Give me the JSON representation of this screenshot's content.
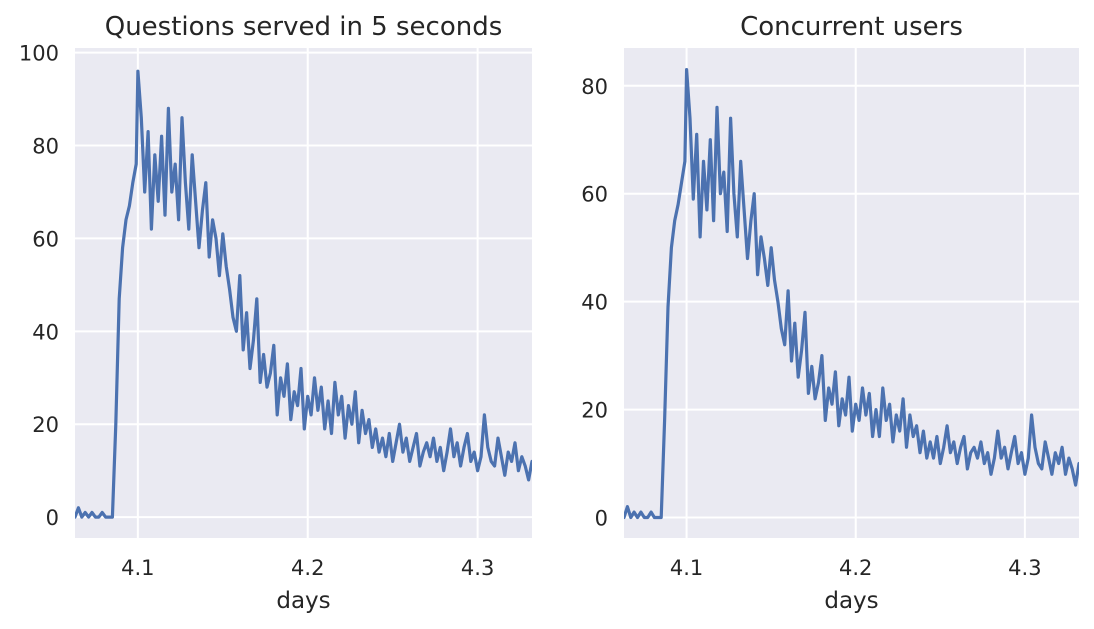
{
  "chart_data": [
    {
      "type": "line",
      "title": "Questions served in 5 seconds",
      "xlabel": "days",
      "ylabel": "",
      "xlim": [
        4.063,
        4.332
      ],
      "ylim": [
        -4.5,
        101
      ],
      "xticks": [
        4.1,
        4.2,
        4.3
      ],
      "xtick_labels": [
        "4.1",
        "4.2",
        "4.3"
      ],
      "yticks": [
        0,
        20,
        40,
        60,
        80,
        100
      ],
      "ytick_labels": [
        "0",
        "20",
        "40",
        "60",
        "80",
        "100"
      ],
      "grid": true,
      "series": [
        {
          "color": "#4c72b0",
          "x": [
            4.063,
            4.065,
            4.067,
            4.069,
            4.071,
            4.073,
            4.075,
            4.077,
            4.079,
            4.081,
            4.083,
            4.085,
            4.087,
            4.089,
            4.091,
            4.093,
            4.095,
            4.097,
            4.099,
            4.1,
            4.102,
            4.104,
            4.106,
            4.108,
            4.11,
            4.112,
            4.114,
            4.116,
            4.118,
            4.12,
            4.122,
            4.124,
            4.126,
            4.128,
            4.13,
            4.132,
            4.134,
            4.136,
            4.138,
            4.14,
            4.142,
            4.144,
            4.146,
            4.148,
            4.15,
            4.152,
            4.154,
            4.156,
            4.158,
            4.16,
            4.162,
            4.164,
            4.166,
            4.168,
            4.17,
            4.172,
            4.174,
            4.176,
            4.178,
            4.18,
            4.182,
            4.184,
            4.186,
            4.188,
            4.19,
            4.192,
            4.194,
            4.196,
            4.198,
            4.2,
            4.202,
            4.204,
            4.206,
            4.208,
            4.21,
            4.212,
            4.214,
            4.216,
            4.218,
            4.22,
            4.222,
            4.224,
            4.226,
            4.228,
            4.23,
            4.232,
            4.234,
            4.236,
            4.238,
            4.24,
            4.242,
            4.244,
            4.246,
            4.248,
            4.25,
            4.252,
            4.254,
            4.256,
            4.258,
            4.26,
            4.262,
            4.264,
            4.266,
            4.268,
            4.27,
            4.272,
            4.274,
            4.276,
            4.278,
            4.28,
            4.282,
            4.284,
            4.286,
            4.288,
            4.29,
            4.292,
            4.294,
            4.296,
            4.298,
            4.3,
            4.302,
            4.304,
            4.306,
            4.308,
            4.31,
            4.312,
            4.314,
            4.316,
            4.318,
            4.32,
            4.322,
            4.324,
            4.326,
            4.328,
            4.33,
            4.332
          ],
          "values": [
            0,
            2,
            0,
            1,
            0,
            1,
            0,
            0,
            1,
            0,
            0,
            0,
            20,
            47,
            58,
            64,
            67,
            72,
            76,
            96,
            86,
            70,
            83,
            62,
            78,
            68,
            82,
            65,
            88,
            70,
            76,
            64,
            86,
            72,
            62,
            78,
            68,
            58,
            66,
            72,
            56,
            64,
            60,
            52,
            61,
            54,
            49,
            43,
            40,
            52,
            36,
            44,
            32,
            38,
            47,
            29,
            35,
            28,
            31,
            37,
            22,
            30,
            26,
            33,
            21,
            27,
            24,
            32,
            19,
            26,
            22,
            30,
            23,
            28,
            19,
            25,
            18,
            29,
            22,
            26,
            17,
            24,
            20,
            27,
            16,
            23,
            18,
            21,
            15,
            19,
            14,
            17,
            13,
            18,
            12,
            16,
            20,
            14,
            17,
            12,
            15,
            18,
            11,
            14,
            16,
            13,
            17,
            12,
            15,
            10,
            14,
            19,
            13,
            16,
            11,
            15,
            18,
            12,
            14,
            10,
            13,
            22,
            15,
            12,
            11,
            17,
            13,
            9,
            14,
            12,
            16,
            10,
            13,
            11,
            8,
            12
          ]
        }
      ]
    },
    {
      "type": "line",
      "title": "Concurrent users",
      "xlabel": "days",
      "ylabel": "",
      "xlim": [
        4.063,
        4.332
      ],
      "ylim": [
        -3.8,
        87
      ],
      "xticks": [
        4.1,
        4.2,
        4.3
      ],
      "xtick_labels": [
        "4.1",
        "4.2",
        "4.3"
      ],
      "yticks": [
        0,
        20,
        40,
        60,
        80
      ],
      "ytick_labels": [
        "0",
        "20",
        "40",
        "60",
        "80"
      ],
      "grid": true,
      "series": [
        {
          "color": "#4c72b0",
          "x": [
            4.063,
            4.065,
            4.067,
            4.069,
            4.071,
            4.073,
            4.075,
            4.077,
            4.079,
            4.081,
            4.083,
            4.085,
            4.087,
            4.089,
            4.091,
            4.093,
            4.095,
            4.097,
            4.099,
            4.1,
            4.102,
            4.104,
            4.106,
            4.108,
            4.11,
            4.112,
            4.114,
            4.116,
            4.118,
            4.12,
            4.122,
            4.124,
            4.126,
            4.128,
            4.13,
            4.132,
            4.134,
            4.136,
            4.138,
            4.14,
            4.142,
            4.144,
            4.146,
            4.148,
            4.15,
            4.152,
            4.154,
            4.156,
            4.158,
            4.16,
            4.162,
            4.164,
            4.166,
            4.168,
            4.17,
            4.172,
            4.174,
            4.176,
            4.178,
            4.18,
            4.182,
            4.184,
            4.186,
            4.188,
            4.19,
            4.192,
            4.194,
            4.196,
            4.198,
            4.2,
            4.202,
            4.204,
            4.206,
            4.208,
            4.21,
            4.212,
            4.214,
            4.216,
            4.218,
            4.22,
            4.222,
            4.224,
            4.226,
            4.228,
            4.23,
            4.232,
            4.234,
            4.236,
            4.238,
            4.24,
            4.242,
            4.244,
            4.246,
            4.248,
            4.25,
            4.252,
            4.254,
            4.256,
            4.258,
            4.26,
            4.262,
            4.264,
            4.266,
            4.268,
            4.27,
            4.272,
            4.274,
            4.276,
            4.278,
            4.28,
            4.282,
            4.284,
            4.286,
            4.288,
            4.29,
            4.292,
            4.294,
            4.296,
            4.298,
            4.3,
            4.302,
            4.304,
            4.306,
            4.308,
            4.31,
            4.312,
            4.314,
            4.316,
            4.318,
            4.32,
            4.322,
            4.324,
            4.326,
            4.328,
            4.33,
            4.332
          ],
          "values": [
            0,
            2,
            0,
            1,
            0,
            1,
            0,
            0,
            1,
            0,
            0,
            0,
            18,
            39,
            50,
            55,
            58,
            62,
            66,
            83,
            74,
            59,
            71,
            52,
            66,
            57,
            70,
            55,
            76,
            60,
            64,
            53,
            74,
            60,
            52,
            66,
            57,
            48,
            55,
            60,
            45,
            52,
            48,
            43,
            50,
            44,
            40,
            35,
            32,
            42,
            29,
            36,
            26,
            31,
            38,
            23,
            28,
            22,
            25,
            30,
            18,
            24,
            21,
            27,
            17,
            22,
            19,
            26,
            16,
            21,
            18,
            24,
            19,
            23,
            15,
            20,
            15,
            24,
            18,
            21,
            14,
            19,
            16,
            22,
            13,
            19,
            15,
            17,
            12,
            16,
            11,
            14,
            11,
            15,
            10,
            13,
            17,
            12,
            14,
            10,
            13,
            15,
            9,
            12,
            13,
            11,
            14,
            10,
            12,
            8,
            11,
            16,
            11,
            13,
            9,
            12,
            15,
            10,
            12,
            8,
            11,
            19,
            13,
            10,
            9,
            14,
            11,
            8,
            12,
            10,
            13,
            8,
            11,
            9,
            6,
            10
          ]
        }
      ]
    }
  ]
}
